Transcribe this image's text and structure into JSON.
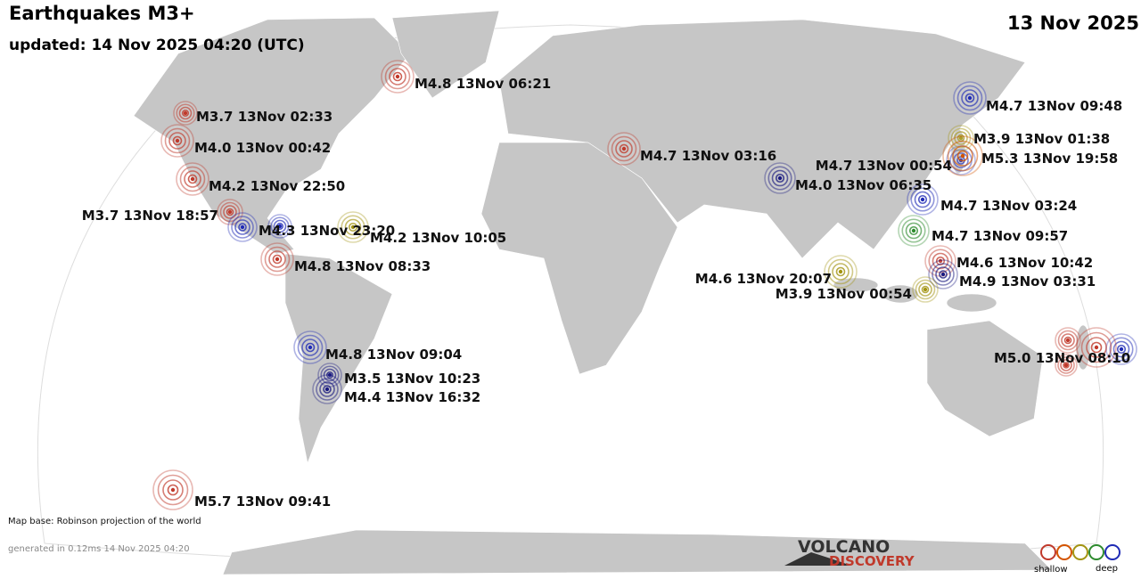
{
  "header": {
    "title": "Earthquakes M3+",
    "updated": "updated: 14 Nov 2025 04:20 (UTC)",
    "date": "13 Nov 2025"
  },
  "quakes": [
    {
      "label": "M4.8 13Nov 06:21",
      "color": "#c0392b"
    },
    {
      "label": "M3.7 13Nov 02:33",
      "color": "#c0392b"
    },
    {
      "label": "M4.0 13Nov 00:42",
      "color": "#c0392b"
    },
    {
      "label": "M4.2 13Nov 22:50",
      "color": "#c0392b"
    },
    {
      "label": "M3.7 13Nov 18:57",
      "color": "#c0392b"
    },
    {
      "label": "M4.3 13Nov 23:20",
      "color": "#1f2bb5"
    },
    {
      "label": "M4.2 13Nov 10:05",
      "color": "#a39412"
    },
    {
      "label": "M4.8 13Nov 08:33",
      "color": "#c0392b"
    },
    {
      "label": "M4.7 13Nov 03:16",
      "color": "#c0392b"
    },
    {
      "label": "M4.0 13Nov 06:35",
      "color": "#1a1a80"
    },
    {
      "label": "M4.7 13Nov 00:54",
      "color": "#1f2bb5"
    },
    {
      "label": "M4.7 13Nov 03:24",
      "color": "#1f2bb5"
    },
    {
      "label": "M4.7 13Nov 09:48",
      "color": "#1f2bb5"
    },
    {
      "label": "M3.9 13Nov 01:38",
      "color": "#a39412"
    },
    {
      "label": "M5.3 13Nov 19:58",
      "color": "#d35400"
    },
    {
      "label": "M4.7 13Nov 09:57",
      "color": "#2e8b2e"
    },
    {
      "label": "M4.6 13Nov 10:42",
      "color": "#c0392b"
    },
    {
      "label": "M4.9 13Nov 03:31",
      "color": "#1a1a80"
    },
    {
      "label": "M4.6 13Nov 20:07",
      "color": "#a39412"
    },
    {
      "label": "M3.9 13Nov 00:54",
      "color": "#a39412"
    },
    {
      "label": "M5.0 13Nov 08:10",
      "color": "#c0392b"
    },
    {
      "label": "M4.8 13Nov 09:04",
      "color": "#1f2bb5"
    },
    {
      "label": "M3.5 13Nov 10:23",
      "color": "#1a1a80"
    },
    {
      "label": "M4.4 13Nov 16:32",
      "color": "#1a1a80"
    },
    {
      "label": "M5.7 13Nov 09:41",
      "color": "#c0392b"
    }
  ],
  "footer": {
    "map_base": "Map base: Robinson projection of the world",
    "generated": "generated in 0.12ms 14 Nov 2025 04:20"
  },
  "logo": {
    "line1": "VOLCANO",
    "line2": "DISCOVERY"
  },
  "legend": {
    "shallow": "shallow",
    "deep": "deep"
  }
}
